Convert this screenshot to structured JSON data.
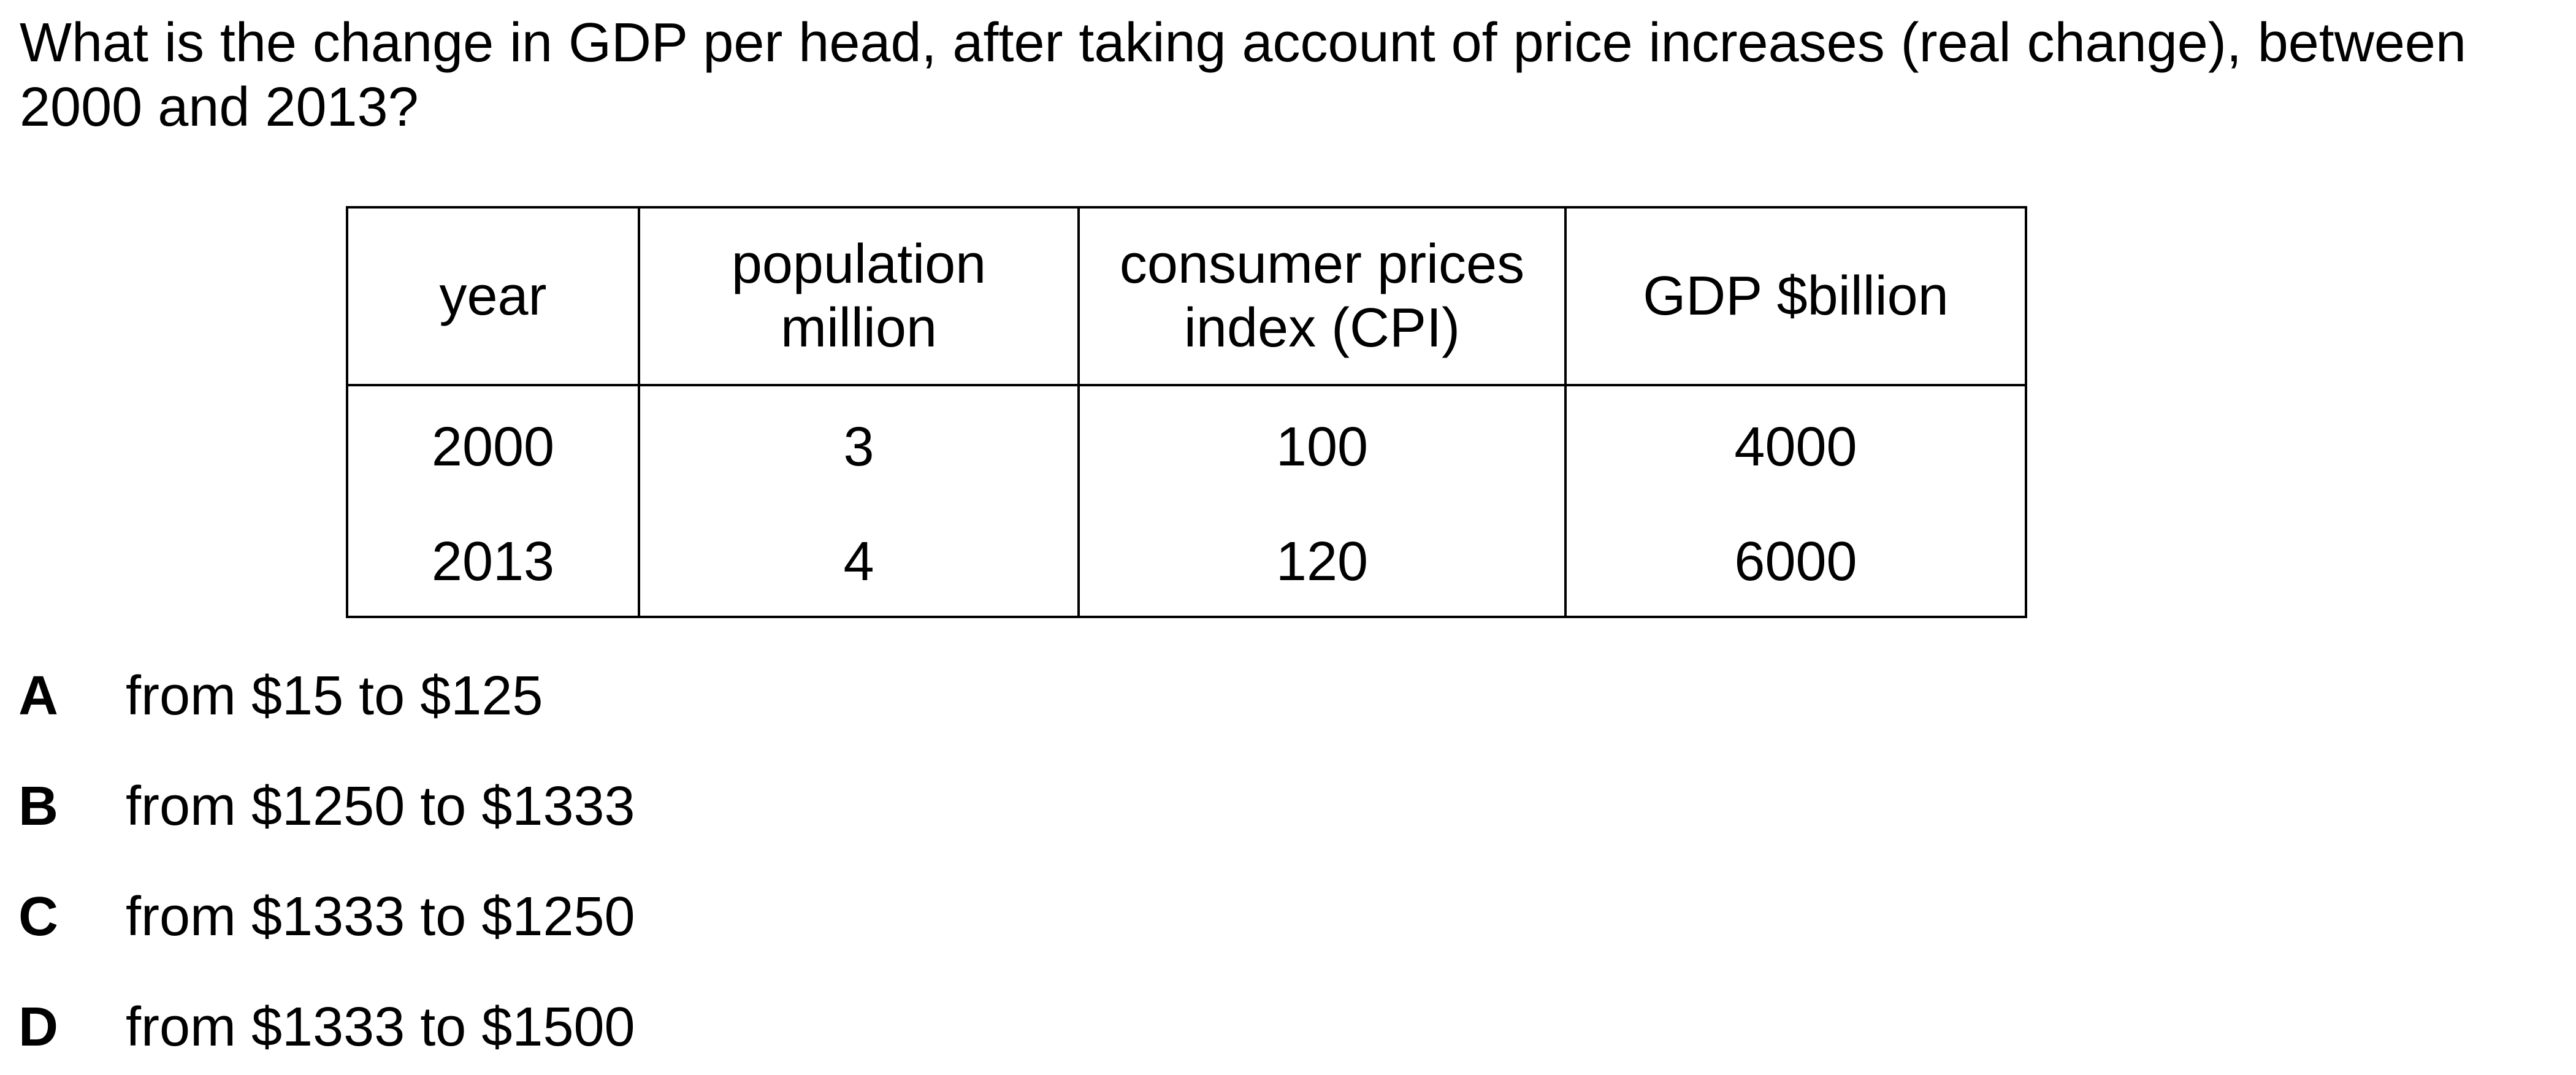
{
  "question": {
    "text": "What is the change in GDP per head, after taking account of price increases (real change), between 2000 and 2013?"
  },
  "table": {
    "headers": [
      [
        "year"
      ],
      [
        "population",
        "million"
      ],
      [
        "consumer prices",
        "index (CPI)"
      ],
      [
        "GDP $billion"
      ]
    ],
    "rows": [
      [
        "2000",
        "3",
        "100",
        "4000"
      ],
      [
        "2013",
        "4",
        "120",
        "6000"
      ]
    ]
  },
  "options": [
    {
      "letter": "A",
      "text": "from $15 to $125"
    },
    {
      "letter": "B",
      "text": "from $1250 to $1333"
    },
    {
      "letter": "C",
      "text": "from $1333 to $1250"
    },
    {
      "letter": "D",
      "text": "from $1333 to $1500"
    }
  ]
}
